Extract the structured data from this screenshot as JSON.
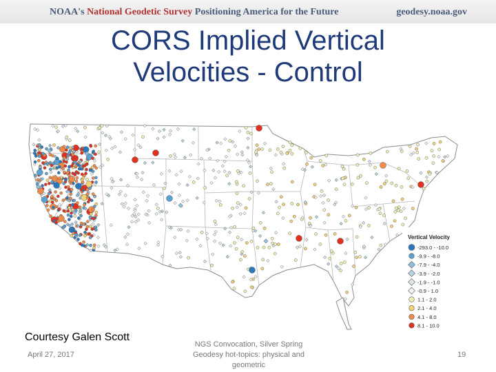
{
  "header": {
    "agency": "NOAA's",
    "survey_name": "National Geodetic Survey",
    "tagline": "Positioning America for the Future",
    "website": "geodesy.noaa.gov"
  },
  "slide": {
    "title_line1": "CORS Implied Vertical",
    "title_line2": "Velocities - Control",
    "credit": "Courtesy Galen Scott",
    "date": "April 27, 2017",
    "event_line1": "NGS Convocation, Silver Spring",
    "event_line2": "Geodesy hot-topics: physical and",
    "event_line3": "geometric",
    "page_number": "19"
  },
  "legend": {
    "title": "Vertical Velocity",
    "items": [
      {
        "label": "-293.0 - -10.0",
        "color": "#2a78c0",
        "shape": "circle"
      },
      {
        "label": "-9.9 - -8.0",
        "color": "#5aa0d0",
        "shape": "circle"
      },
      {
        "label": "-7.9 - -4.0",
        "color": "#8fc0dc",
        "shape": "diamond"
      },
      {
        "label": "-3.9 - -2.0",
        "color": "#b8d4e0",
        "shape": "diamond"
      },
      {
        "label": "-1.9 - -1.0",
        "color": "#dde8ec",
        "shape": "diamond"
      },
      {
        "label": "-0.9 - 1.0",
        "color": "#f4f4f4",
        "shape": "diamond"
      },
      {
        "label": "1.1 - 2.0",
        "color": "#f0f0b8",
        "shape": "circle"
      },
      {
        "label": "2.1 - 4.0",
        "color": "#f2d27a",
        "shape": "circle"
      },
      {
        "label": "4.1 - 8.0",
        "color": "#ee8a4a",
        "shape": "circle"
      },
      {
        "label": "8.1 - 10.0",
        "color": "#e03020",
        "shape": "circle"
      }
    ]
  },
  "map": {
    "land_color": "#ffffff",
    "border_color": "#9a9a9a"
  }
}
